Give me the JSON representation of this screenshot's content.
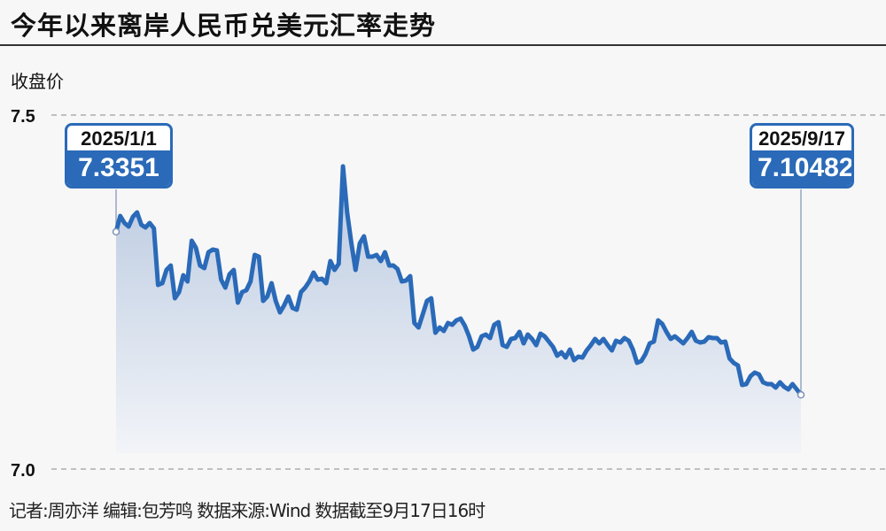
{
  "title": "今年以来离岸人民币兑美元汇率走势",
  "footer": "记者:周亦洋  编辑:包芳鸣  数据来源:Wind 数据截至9月17日16时",
  "colors": {
    "line": "#2a6ab8",
    "fill_top": "#b9c9e0",
    "background": "#f7f7f7"
  },
  "chart_data": {
    "type": "area",
    "title": "今年以来离岸人民币兑美元汇率走势",
    "ylabel": "收盘价",
    "xlabel": "",
    "ylim": [
      7.0,
      7.5
    ],
    "yticks": [
      "7.5",
      "7.0"
    ],
    "grid": "dashed horizontal at ticks",
    "start": {
      "date": "2025/1/1",
      "value": "7.3351"
    },
    "end": {
      "date": "2025/9/17",
      "value": "7.10482"
    },
    "values": [
      7.3351,
      7.3575,
      7.3475,
      7.3425,
      7.3563,
      7.3625,
      7.345,
      7.3413,
      7.3475,
      7.34,
      7.26,
      7.2625,
      7.2813,
      7.2875,
      7.2413,
      7.25,
      7.2738,
      7.265,
      7.3225,
      7.3125,
      7.2875,
      7.2838,
      7.3063,
      7.31,
      7.3088,
      7.2675,
      7.2563,
      7.275,
      7.2813,
      7.235,
      7.25,
      7.2525,
      7.265,
      7.3025,
      7.3,
      7.2375,
      7.2438,
      7.2625,
      7.2375,
      7.2213,
      7.2313,
      7.2438,
      7.2275,
      7.225,
      7.25,
      7.2563,
      7.265,
      7.2775,
      7.2675,
      7.2688,
      7.2625,
      7.2938,
      7.2813,
      7.29,
      7.4275,
      7.3625,
      7.3188,
      7.2813,
      7.3188,
      7.3288,
      7.3,
      7.3,
      7.3025,
      7.2938,
      7.3063,
      7.2875,
      7.2875,
      7.2825,
      7.265,
      7.2663,
      7.2725,
      7.2063,
      7.2,
      7.2188,
      7.2375,
      7.2413,
      7.1925,
      7.2,
      7.195,
      7.2063,
      7.2038,
      7.21,
      7.2125,
      7.2025,
      7.1875,
      7.1688,
      7.1725,
      7.1875,
      7.19,
      7.185,
      7.2038,
      7.2075,
      7.175,
      7.1725,
      7.1838,
      7.185,
      7.1938,
      7.1775,
      7.19,
      7.1838,
      7.175,
      7.1913,
      7.1875,
      7.18,
      7.1725,
      7.16,
      7.165,
      7.1575,
      7.1688,
      7.1538,
      7.1588,
      7.1575,
      7.1675,
      7.175,
      7.1838,
      7.1775,
      7.1838,
      7.175,
      7.1675,
      7.1813,
      7.1788,
      7.185,
      7.1813,
      7.1688,
      7.15,
      7.1525,
      7.1625,
      7.1775,
      7.18,
      7.21,
      7.205,
      7.1938,
      7.1838,
      7.1875,
      7.1825,
      7.1775,
      7.185,
      7.1938,
      7.1813,
      7.1788,
      7.18,
      7.1863,
      7.185,
      7.185,
      7.1788,
      7.18,
      7.1563,
      7.15,
      7.1463,
      7.1188,
      7.12,
      7.1313,
      7.1363,
      7.1338,
      7.1225,
      7.12,
      7.12,
      7.115,
      7.1225,
      7.1163,
      7.1125,
      7.12,
      7.1125,
      7.10482
    ]
  }
}
